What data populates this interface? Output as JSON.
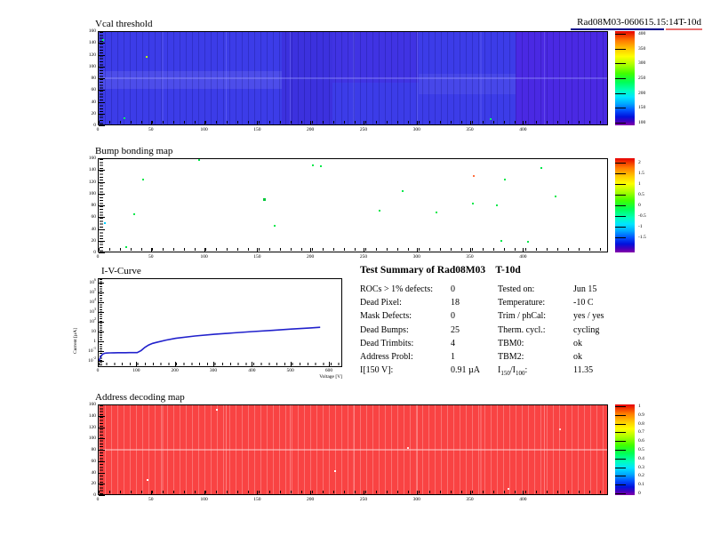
{
  "header": {
    "run_label": "Rad08M03-060615.15:14T-10d"
  },
  "summary": {
    "title": "Test Summary of Rad08M03    T-10d",
    "rows_left": [
      {
        "label": "ROCs > 1% defects:",
        "value": "0"
      },
      {
        "label": "Dead Pixel:",
        "value": "18"
      },
      {
        "label": "Mask Defects:",
        "value": "0"
      },
      {
        "label": "Dead Bumps:",
        "value": "25"
      },
      {
        "label": "Dead Trimbits:",
        "value": "4"
      },
      {
        "label": "Address Probl:",
        "value": "1"
      },
      {
        "label": "I[150 V]:",
        "value": "0.91 µA"
      }
    ],
    "rows_right": [
      {
        "label": "Tested on:",
        "value": "Jun 15"
      },
      {
        "label": "Temperature:",
        "value": "-10 C"
      },
      {
        "label": "Trim / phCal:",
        "value": "yes / yes"
      },
      {
        "label": "Therm. cycl.:",
        "value": "cycling"
      },
      {
        "label": "TBM0:",
        "value": "ok"
      },
      {
        "label": "TBM2:",
        "value": "ok"
      },
      {
        "label_parts": {
          "p1": "I",
          "s1": "150",
          "p2": "/I",
          "s2": "100",
          "p3": ":"
        },
        "value": "11.35"
      }
    ]
  },
  "chart_data": [
    {
      "type": "heatmap",
      "title": "Vcal threshold",
      "xlim": [
        0,
        480
      ],
      "ylim": [
        0,
        160
      ],
      "xticks": [
        0,
        50,
        100,
        150,
        200,
        250,
        300,
        350,
        400
      ],
      "yticks": [
        0,
        20,
        40,
        60,
        80,
        100,
        120,
        140,
        160
      ],
      "colorbar": {
        "range": [
          90,
          410
        ],
        "ticks": [
          400,
          350,
          300,
          250,
          200,
          150,
          100
        ]
      },
      "base_color": "#3c3ce8",
      "note": "mostly uniform low threshold (blue) across 8x2 ROC module, right section slightly violet",
      "defects": [
        {
          "col": 3,
          "row": 146,
          "color": "#00ff66"
        },
        {
          "col": 44,
          "row": 118,
          "color": "#b4ff00"
        },
        {
          "col": 368,
          "row": 12,
          "color": "#00ff66"
        },
        {
          "col": 23,
          "row": 14,
          "color": "#00ff66"
        }
      ]
    },
    {
      "type": "heatmap",
      "title": "Bump bonding map",
      "xlim": [
        0,
        480
      ],
      "ylim": [
        0,
        160
      ],
      "xticks": [
        0,
        50,
        100,
        150,
        200,
        250,
        300,
        350,
        400
      ],
      "yticks": [
        0,
        20,
        40,
        60,
        80,
        100,
        120,
        140,
        160
      ],
      "colorbar": {
        "range": [
          -2.2,
          2.2
        ],
        "ticks": [
          2,
          1.5,
          1,
          0.5,
          0,
          -0.5,
          -1,
          -1.5
        ]
      },
      "base_color": "#ffffff",
      "note": "white map with isolated defective bump pixels",
      "defects": [
        {
          "col": 94,
          "row": 158,
          "color": "#00e84a"
        },
        {
          "col": 201,
          "row": 149,
          "color": "#00e84a"
        },
        {
          "col": 208,
          "row": 148,
          "color": "#00e84a"
        },
        {
          "col": 416,
          "row": 145,
          "color": "#00e84a"
        },
        {
          "col": 41,
          "row": 126,
          "color": "#00e84a"
        },
        {
          "col": 352,
          "row": 131,
          "color": "#ff7040"
        },
        {
          "col": 381,
          "row": 126,
          "color": "#00e84a"
        },
        {
          "col": 285,
          "row": 106,
          "color": "#00e84a"
        },
        {
          "col": 155,
          "row": 92,
          "color": "#00c838",
          "size": 3
        },
        {
          "col": 351,
          "row": 85,
          "color": "#00e84a"
        },
        {
          "col": 374,
          "row": 82,
          "color": "#00e84a"
        },
        {
          "col": 263,
          "row": 72,
          "color": "#00e84a"
        },
        {
          "col": 317,
          "row": 69,
          "color": "#00e84a"
        },
        {
          "col": 33,
          "row": 66,
          "color": "#00e84a"
        },
        {
          "col": 165,
          "row": 47,
          "color": "#00e84a"
        },
        {
          "col": 5,
          "row": 51,
          "color": "#00cfff"
        },
        {
          "col": 25,
          "row": 11,
          "color": "#00e84a"
        },
        {
          "col": 378,
          "row": 21,
          "color": "#00e84a"
        },
        {
          "col": 403,
          "row": 19,
          "color": "#00e84a"
        },
        {
          "col": 429,
          "row": 96,
          "color": "#00e84a"
        }
      ]
    },
    {
      "type": "line",
      "title": "I-V-Curve",
      "xlabel": "Voltage [V]",
      "ylabel": "Current [µA]",
      "xlim": [
        0,
        630
      ],
      "xticks": [
        0,
        100,
        200,
        300,
        400,
        500,
        600
      ],
      "ylog": true,
      "ylim_exponents": [
        -2.5,
        6.5
      ],
      "ytick_exponents": [
        6,
        5,
        4,
        3,
        2,
        1,
        0,
        -1,
        -2
      ],
      "color": "#2121cc",
      "x": [
        0,
        5,
        10,
        15,
        20,
        30,
        40,
        50,
        60,
        70,
        80,
        90,
        100,
        110,
        120,
        130,
        140,
        150,
        175,
        200,
        250,
        300,
        350,
        400,
        450,
        500,
        550,
        575
      ],
      "y": [
        0.01,
        0.03,
        0.055,
        0.068,
        0.072,
        0.075,
        0.077,
        0.078,
        0.079,
        0.079,
        0.08,
        0.08,
        0.08,
        0.13,
        0.28,
        0.5,
        0.72,
        0.91,
        1.6,
        2.4,
        4.2,
        6.3,
        8.8,
        12,
        16,
        22,
        29,
        33
      ]
    },
    {
      "type": "heatmap",
      "title": "Address decoding map",
      "xlim": [
        0,
        480
      ],
      "ylim": [
        0,
        160
      ],
      "xticks": [
        0,
        50,
        100,
        150,
        200,
        250,
        300,
        350,
        400
      ],
      "yticks": [
        0,
        20,
        40,
        60,
        80,
        100,
        120,
        140,
        160
      ],
      "colorbar": {
        "range": [
          -0.02,
          1.02
        ],
        "ticks": [
          1,
          0.9,
          0.8,
          0.7,
          0.6,
          0.5,
          0.4,
          0.3,
          0.2,
          0.1,
          0
        ]
      },
      "base_color": "#f94343",
      "note": "uniform value 1 (red) across whole module",
      "defects": [
        {
          "col": 110,
          "row": 152,
          "color": "#ffffff"
        },
        {
          "col": 290,
          "row": 84,
          "color": "#ffe0e0"
        },
        {
          "col": 45,
          "row": 28,
          "color": "#ffffff"
        },
        {
          "col": 433,
          "row": 118,
          "color": "#ffd5d5"
        },
        {
          "col": 222,
          "row": 44,
          "color": "#ffffff"
        },
        {
          "col": 385,
          "row": 12,
          "color": "#ffe8e8"
        }
      ]
    }
  ]
}
